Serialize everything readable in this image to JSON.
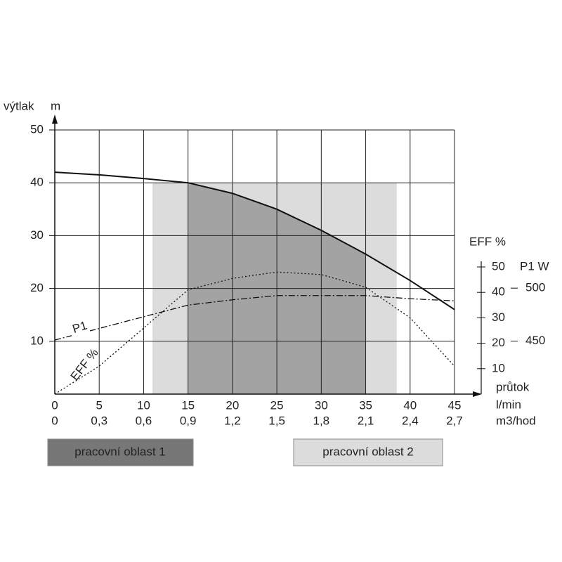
{
  "chart_data": {
    "type": "line",
    "ylabel": "výtlak",
    "yunit": "m",
    "xlabel": "průtok",
    "xunit": "l/min",
    "x2unit": "m3/hod",
    "y2label": "EFF %",
    "y3label": "P1 W",
    "x": [
      0,
      5,
      10,
      15,
      20,
      25,
      30,
      35,
      40,
      45
    ],
    "xlim": [
      0,
      45
    ],
    "xticks": [
      0,
      5,
      10,
      15,
      20,
      25,
      30,
      35,
      40,
      45
    ],
    "x2lim": [
      0,
      2.7
    ],
    "x2ticks": [
      0,
      {
        "value": 0.3,
        "label": "0,3"
      },
      {
        "value": 0.6,
        "label": "0,6"
      },
      {
        "value": 0.9,
        "label": "0,9"
      },
      {
        "value": 1.2,
        "label": "1,2"
      },
      {
        "value": 1.5,
        "label": "1,5"
      },
      {
        "value": 1.8,
        "label": "1,8"
      },
      {
        "value": 2.1,
        "label": "2,1"
      },
      {
        "value": 2.4,
        "label": "2,4"
      },
      {
        "value": 2.7,
        "label": "2,7"
      }
    ],
    "ylim": [
      0,
      50
    ],
    "yticks": [
      10,
      20,
      30,
      40,
      50
    ],
    "y2lim": [
      0,
      50
    ],
    "y2ticks": [
      10,
      20,
      30,
      40,
      50
    ],
    "y3lim": [
      400,
      520
    ],
    "y3ticks": [
      450,
      500
    ],
    "grid": true,
    "regions": [
      {
        "name": "pracovní oblast 1",
        "color": "#a3a3a3",
        "x": [
          15,
          35
        ]
      },
      {
        "name": "pracovní oblast 2",
        "color": "#dcdcdc",
        "x": [
          11,
          38.5
        ],
        "top": 40
      }
    ],
    "series": [
      {
        "color": "#111111",
        "style": "solid",
        "values": [
          42,
          41.5,
          40.8,
          40,
          38,
          35,
          31,
          26.5,
          21.5,
          16
        ]
      },
      {
        "name": "EFF %",
        "axis": "y2",
        "color": "#111111",
        "style": "dotted",
        "values": [
          0,
          11,
          26,
          41,
          45.5,
          48,
          47,
          42,
          30,
          11
        ]
      },
      {
        "name": "P1",
        "axis": "y3",
        "color": "#111111",
        "style": "dashdot",
        "values": [
          451,
          462,
          473,
          484,
          489,
          493,
          493,
          493,
          490,
          488
        ]
      }
    ]
  }
}
